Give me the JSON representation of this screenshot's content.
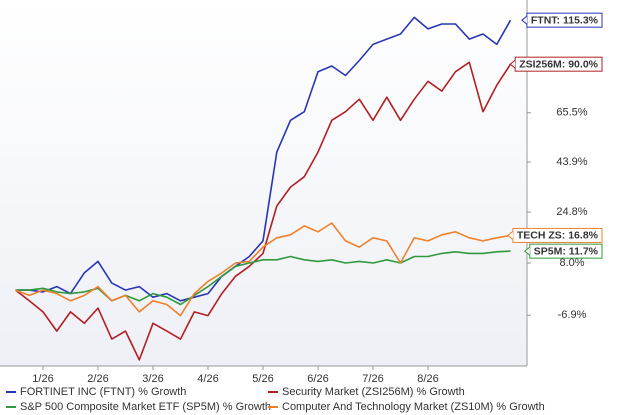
{
  "chart_data": {
    "type": "line",
    "log_scale": true,
    "categories": [
      null,
      null,
      "1/26",
      null,
      null,
      null,
      "2/26",
      null,
      null,
      null,
      "3/26",
      null,
      null,
      null,
      "4/26",
      null,
      null,
      null,
      "5/26",
      null,
      null,
      null,
      "6/26",
      null,
      null,
      null,
      "7/26",
      null,
      null,
      null,
      "8/26",
      null,
      null,
      null,
      null,
      null,
      null
    ],
    "ylim": [
      -19.4,
      128
    ],
    "yticks": [
      {
        "value": -6.9,
        "label": "-6.9%"
      },
      {
        "value": 8.0,
        "label": "8.0%"
      },
      {
        "value": 24.8,
        "label": "24.8%"
      },
      {
        "value": 43.9,
        "label": "43.9%"
      },
      {
        "value": 65.5,
        "label": "65.5%"
      }
    ],
    "series": [
      {
        "name": "FORTINET INC (FTNT) % Growth",
        "color": "#2a35b5",
        "end_label": "FTNT: 115.3%",
        "values": [
          0,
          0,
          -0.5,
          1,
          -1,
          5,
          8.5,
          2,
          0,
          1,
          -2,
          -1,
          -3,
          -2,
          -1,
          4,
          7,
          10,
          15,
          48,
          62,
          66,
          86,
          89,
          84,
          92,
          101,
          104,
          107,
          117,
          110,
          113,
          113,
          104,
          107,
          101,
          115.3
        ]
      },
      {
        "name": "Security Market (ZSI256M) % Growth",
        "color": "#b21f24",
        "end_label": "ZSI256M: 90.0%",
        "values": [
          0,
          -3,
          -6,
          -11,
          -6,
          -9,
          -5,
          -13,
          -11,
          -18,
          -9,
          -11,
          -13,
          -6,
          -7,
          -1,
          4,
          7,
          11,
          27,
          34,
          38,
          48,
          62,
          66,
          72,
          62,
          73,
          62,
          72,
          81,
          76,
          86,
          91,
          66,
          79,
          90.0
        ]
      },
      {
        "name": "S&P 500 Composite Market ETF (SP5M) % Growth",
        "color": "#2f9a3d",
        "end_label": "SP5M: 11.7%",
        "values": [
          0,
          0,
          0.5,
          -0.5,
          -1,
          -0.5,
          0.5,
          -3,
          -1.5,
          -3,
          -1,
          -2,
          -4,
          -1.5,
          1,
          4,
          7,
          8,
          9,
          9,
          10,
          9,
          8.5,
          9,
          8,
          8.5,
          8,
          9,
          8,
          10,
          10,
          11,
          11.5,
          11,
          11,
          11.5,
          11.7
        ]
      },
      {
        "name": "Computer And Technology Market (ZS10M) % Growth",
        "color": "#f0802c",
        "end_label": "TECH ZS: 16.8%",
        "values": [
          0,
          -1.5,
          0,
          -1,
          -3,
          -1.5,
          1,
          -3,
          -1.5,
          -6,
          -3,
          -4,
          -7,
          -1,
          2.5,
          5,
          8,
          8.5,
          13,
          16,
          17,
          20,
          18,
          21,
          15,
          13,
          16,
          15,
          8,
          16,
          15,
          17,
          18,
          16,
          15,
          16,
          16.8
        ]
      }
    ]
  }
}
